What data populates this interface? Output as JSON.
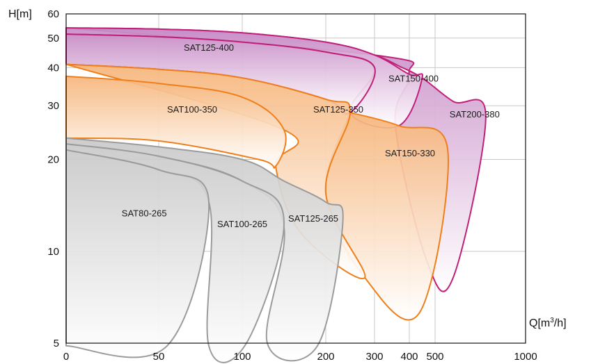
{
  "chart_data": {
    "type": "area",
    "x_axis": {
      "label_prefix": "Q[m",
      "label_sup": "3",
      "label_suffix": "/h]",
      "scale": "log",
      "ticks": [
        {
          "value": 0,
          "label": "0"
        },
        {
          "value": 50,
          "label": "50"
        },
        {
          "value": 100,
          "label": "100"
        },
        {
          "value": 200,
          "label": "200"
        },
        {
          "value": 300,
          "label": "300"
        },
        {
          "value": 400,
          "label": "400"
        },
        {
          "value": 500,
          "label": "500"
        },
        {
          "value": 1000,
          "label": "1000"
        }
      ],
      "gridlines": [
        50,
        100,
        200,
        300,
        400,
        500
      ]
    },
    "y_axis": {
      "label": "H[m]",
      "scale": "log",
      "ylim": [
        5,
        60
      ],
      "ticks": [
        {
          "value": 5,
          "label": "5"
        },
        {
          "value": 10,
          "label": "10"
        },
        {
          "value": 20,
          "label": "20"
        },
        {
          "value": 30,
          "label": "30"
        },
        {
          "value": 40,
          "label": "40"
        },
        {
          "value": 50,
          "label": "50"
        },
        {
          "value": 60,
          "label": "60"
        }
      ],
      "gridlines": [
        10,
        20,
        30,
        40,
        50
      ]
    },
    "grid": true,
    "series": [
      {
        "name": "SAT200-380",
        "group": "purple",
        "outline": [
          [
            0,
            54
          ],
          [
            50,
            53.5
          ],
          [
            100,
            52
          ],
          [
            200,
            48.5
          ],
          [
            300,
            44
          ],
          [
            370,
            40.5
          ],
          [
            450,
            37
          ],
          [
            600,
            31
          ],
          [
            780,
            27.6
          ],
          [
            600,
            8.2
          ],
          [
            470,
            9.2
          ],
          [
            360,
            25.8
          ],
          [
            400,
            38
          ],
          [
            300,
            44
          ],
          [
            0,
            54
          ]
        ],
        "label_at": [
          580,
          27.5
        ]
      },
      {
        "name": "SAT150-400",
        "group": "purple",
        "outline": [
          [
            0,
            51.5
          ],
          [
            50,
            50.5
          ],
          [
            100,
            48.5
          ],
          [
            200,
            45
          ],
          [
            300,
            40
          ],
          [
            250,
            28.5
          ],
          [
            370,
            25.8
          ],
          [
            450,
            37
          ],
          [
            400,
            38
          ],
          [
            300,
            44
          ],
          [
            200,
            48.5
          ],
          [
            100,
            52
          ],
          [
            50,
            53.5
          ],
          [
            0,
            54
          ]
        ],
        "label_at": [
          340,
          36
        ]
      },
      {
        "name": "SAT125-400",
        "group": "purple",
        "outline": [
          [
            0,
            51.5
          ],
          [
            50,
            50.5
          ],
          [
            100,
            48.5
          ],
          [
            200,
            45
          ],
          [
            300,
            40
          ],
          [
            250,
            28.5
          ],
          [
            200,
            31.5
          ],
          [
            100,
            37
          ],
          [
            50,
            39.5
          ],
          [
            0,
            41
          ]
        ],
        "label_at": [
          65,
          45.5
        ]
      },
      {
        "name": "SAT150-330",
        "group": "orange",
        "outline": [
          [
            250,
            28.5
          ],
          [
            370,
            25.8
          ],
          [
            570,
            21.5
          ],
          [
            440,
            6.3
          ],
          [
            280,
            8.2
          ],
          [
            200,
            15.5
          ],
          [
            250,
            28.5
          ]
        ],
        "label_at": [
          330,
          20.5
        ]
      },
      {
        "name": "SAT125-350",
        "group": "orange",
        "outline": [
          [
            0,
            41
          ],
          [
            50,
            39.5
          ],
          [
            100,
            37
          ],
          [
            200,
            31.5
          ],
          [
            250,
            28.5
          ],
          [
            200,
            15.5
          ],
          [
            280,
            8.2
          ],
          [
            170,
            11.5
          ],
          [
            140,
            19
          ],
          [
            150,
            25
          ],
          [
            0,
            41
          ]
        ],
        "label_at": [
          185,
          28.5
        ]
      },
      {
        "name": "SAT100-350",
        "group": "orange",
        "outline": [
          [
            0,
            37.5
          ],
          [
            50,
            35.5
          ],
          [
            100,
            32
          ],
          [
            150,
            25
          ],
          [
            140,
            19
          ],
          [
            120,
            20
          ],
          [
            50,
            23
          ],
          [
            0,
            23.5
          ]
        ],
        "label_at": [
          55,
          28.5
        ]
      },
      {
        "name": "SAT125-265",
        "group": "gray",
        "outline": [
          [
            0,
            23.5
          ],
          [
            50,
            22
          ],
          [
            100,
            20
          ],
          [
            150,
            17
          ],
          [
            200,
            14.5
          ],
          [
            235,
            12.5
          ],
          [
            190,
            4.9
          ],
          [
            130,
            5
          ],
          [
            150,
            12
          ],
          [
            100,
            17
          ],
          [
            50,
            20.5
          ],
          [
            0,
            22.5
          ]
        ],
        "label_at": [
          155,
          12.5
        ]
      },
      {
        "name": "SAT100-265",
        "group": "gray",
        "outline": [
          [
            0,
            22.5
          ],
          [
            50,
            20.5
          ],
          [
            100,
            17
          ],
          [
            150,
            12.5
          ],
          [
            105,
            5
          ],
          [
            80,
            4.9
          ],
          [
            80,
            14.5
          ],
          [
            50,
            18.5
          ],
          [
            0,
            21.5
          ]
        ],
        "label_at": [
          85,
          12
        ]
      },
      {
        "name": "SAT80-265",
        "group": "gray",
        "outline": [
          [
            0,
            21.5
          ],
          [
            50,
            18.5
          ],
          [
            80,
            14.5
          ],
          [
            55,
            4.9
          ],
          [
            0,
            4.9
          ]
        ],
        "label_at": [
          30,
          13
        ]
      }
    ]
  },
  "colors": {
    "purple": "#c0207a",
    "orange": "#ef7f1a",
    "gray": "#9b9b9b",
    "grid": "#c8c8c8",
    "axis": "#111111"
  }
}
